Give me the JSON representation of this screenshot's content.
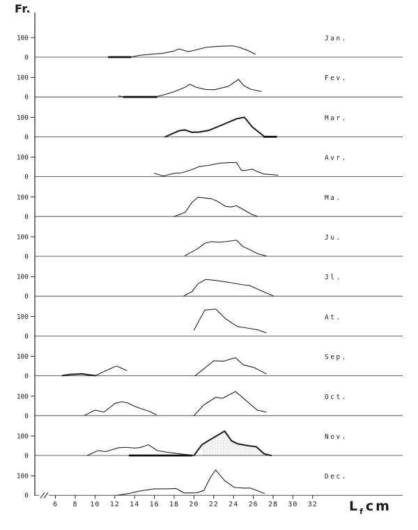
{
  "figure": {
    "y_axis_title": "Fr.",
    "x_axis_title": {
      "main": "L",
      "sub": "f",
      "unit": "cm"
    },
    "y_tick_labels": {
      "hundred": "100",
      "zero": "0"
    }
  },
  "chart_data": {
    "type": "line",
    "title": "",
    "xlabel": "Lf cm",
    "ylabel": "Fr.",
    "x_range": [
      5,
      33.5
    ],
    "x_axis_ticks": [
      6,
      8,
      10,
      12,
      14,
      16,
      18,
      20,
      22,
      24,
      26,
      28,
      30,
      32
    ],
    "panel_y_ticks": [
      0,
      100
    ],
    "legend": "none",
    "grid": false,
    "panels": [
      {
        "label": "Jan.",
        "zero_bold_segments": [
          [
            11.4,
            13.6
          ]
        ],
        "curves": [
          {
            "bold": false,
            "points": [
              [
                11.4,
                0
              ],
              [
                13.6,
                0
              ],
              [
                14.6,
                10
              ],
              [
                15.8,
                15
              ],
              [
                16.9,
                20
              ],
              [
                17.9,
                30
              ],
              [
                18.5,
                42
              ],
              [
                19.4,
                28
              ],
              [
                20.3,
                38
              ],
              [
                21.2,
                50
              ],
              [
                22.4,
                55
              ],
              [
                23.3,
                57
              ],
              [
                23.9,
                58
              ],
              [
                24.6,
                50
              ],
              [
                25.4,
                35
              ],
              [
                26.2,
                15
              ]
            ]
          }
        ]
      },
      {
        "label": "Fev.",
        "zero_bold_segments": [
          [
            12.9,
            16.2
          ]
        ],
        "curves": [
          {
            "bold": false,
            "points": [
              [
                12.4,
                5
              ],
              [
                12.9,
                0
              ],
              [
                16.2,
                2
              ],
              [
                16.9,
                10
              ],
              [
                17.9,
                25
              ],
              [
                19.1,
                50
              ],
              [
                19.6,
                65
              ],
              [
                20.2,
                50
              ],
              [
                21.2,
                38
              ],
              [
                22.1,
                37
              ],
              [
                23.5,
                55
              ],
              [
                24.5,
                90
              ],
              [
                25.0,
                60
              ],
              [
                25.7,
                40
              ],
              [
                26.8,
                28
              ]
            ]
          }
        ]
      },
      {
        "label": "Mar.",
        "zero_bold_segments": [
          [
            27.1,
            28.3
          ]
        ],
        "curves": [
          {
            "bold": true,
            "points": [
              [
                17.1,
                0
              ],
              [
                18.5,
                31
              ],
              [
                19.1,
                35
              ],
              [
                19.8,
                23
              ],
              [
                20.5,
                24
              ],
              [
                21.5,
                33
              ],
              [
                22.9,
                62
              ],
              [
                24.3,
                92
              ],
              [
                25.1,
                100
              ],
              [
                25.9,
                50
              ],
              [
                27.1,
                2
              ]
            ]
          }
        ]
      },
      {
        "label": "Avr.",
        "zero_bold_segments": [],
        "curves": [
          {
            "bold": false,
            "points": [
              [
                16.0,
                17
              ],
              [
                16.9,
                3
              ],
              [
                18.0,
                17
              ],
              [
                18.8,
                20
              ],
              [
                19.8,
                36
              ],
              [
                20.5,
                51
              ],
              [
                21.5,
                58
              ],
              [
                22.6,
                69
              ],
              [
                23.6,
                72
              ],
              [
                24.3,
                72
              ],
              [
                24.8,
                32
              ],
              [
                25.2,
                32
              ],
              [
                25.9,
                38
              ],
              [
                26.4,
                26
              ],
              [
                27.1,
                13
              ],
              [
                28.0,
                10
              ],
              [
                28.5,
                7
              ]
            ]
          }
        ]
      },
      {
        "label": "Ma.",
        "zero_bold_segments": [],
        "curves": [
          {
            "bold": false,
            "points": [
              [
                18.0,
                0
              ],
              [
                18.8,
                15
              ],
              [
                19.1,
                21
              ],
              [
                19.8,
                72
              ],
              [
                20.4,
                98
              ],
              [
                21.1,
                95
              ],
              [
                21.8,
                90
              ],
              [
                22.3,
                80
              ],
              [
                23.2,
                51
              ],
              [
                23.8,
                49
              ],
              [
                24.3,
                55
              ],
              [
                25.1,
                32
              ],
              [
                25.9,
                9
              ],
              [
                26.4,
                1
              ]
            ]
          }
        ]
      },
      {
        "label": "Ju.",
        "zero_bold_segments": [],
        "curves": [
          {
            "bold": false,
            "points": [
              [
                19.1,
                3
              ],
              [
                19.8,
                23
              ],
              [
                20.4,
                40
              ],
              [
                21.1,
                67
              ],
              [
                21.8,
                75
              ],
              [
                22.5,
                72
              ],
              [
                23.2,
                75
              ],
              [
                24.3,
                83
              ],
              [
                24.9,
                52
              ],
              [
                25.6,
                35
              ],
              [
                26.5,
                12
              ],
              [
                27.3,
                2
              ]
            ]
          }
        ]
      },
      {
        "label": "Jl.",
        "zero_bold_segments": [],
        "curves": [
          {
            "bold": false,
            "points": [
              [
                19.0,
                2
              ],
              [
                19.8,
                23
              ],
              [
                20.4,
                63
              ],
              [
                21.2,
                86
              ],
              [
                22.3,
                80
              ],
              [
                23.7,
                69
              ],
              [
                25.1,
                57
              ],
              [
                25.6,
                55
              ],
              [
                27.0,
                23
              ],
              [
                28.0,
                2
              ]
            ]
          }
        ]
      },
      {
        "label": "At.",
        "zero_bold_segments": [],
        "curves": [
          {
            "bold": false,
            "points": [
              [
                20.0,
                30
              ],
              [
                21.1,
                133
              ],
              [
                22.2,
                138
              ],
              [
                23.2,
                88
              ],
              [
                24.4,
                48
              ],
              [
                25.1,
                43
              ],
              [
                26.5,
                31
              ],
              [
                27.3,
                16
              ]
            ]
          }
        ]
      },
      {
        "label": "Sep.",
        "zero_bold_segments": [],
        "curves": [
          {
            "bold": true,
            "points": [
              [
                6.7,
                1
              ],
              [
                7.5,
                7
              ],
              [
                8.7,
                10
              ],
              [
                9.5,
                4
              ],
              [
                10.0,
                1
              ]
            ]
          },
          {
            "bold": false,
            "points": [
              [
                10.0,
                0
              ],
              [
                11.0,
                24
              ],
              [
                11.9,
                45
              ],
              [
                12.2,
                50
              ],
              [
                13.2,
                27
              ]
            ]
          },
          {
            "bold": false,
            "points": [
              [
                20.1,
                0
              ],
              [
                21.0,
                36
              ],
              [
                22.0,
                77
              ],
              [
                23.0,
                75
              ],
              [
                24.2,
                93
              ],
              [
                25.0,
                56
              ],
              [
                26.1,
                42
              ],
              [
                27.3,
                10
              ]
            ]
          }
        ]
      },
      {
        "label": "Oct.",
        "zero_bold_segments": [],
        "curves": [
          {
            "bold": false,
            "points": [
              [
                9.0,
                3
              ],
              [
                10.0,
                28
              ],
              [
                10.9,
                18
              ],
              [
                12.0,
                62
              ],
              [
                12.7,
                72
              ],
              [
                13.3,
                65
              ],
              [
                14.0,
                48
              ],
              [
                14.7,
                35
              ],
              [
                15.5,
                22
              ],
              [
                16.2,
                5
              ]
            ]
          },
          {
            "bold": false,
            "points": [
              [
                20.0,
                0
              ],
              [
                21.0,
                55
              ],
              [
                22.2,
                94
              ],
              [
                22.9,
                89
              ],
              [
                24.2,
                124
              ],
              [
                25.5,
                67
              ],
              [
                26.4,
                28
              ],
              [
                27.3,
                18
              ]
            ]
          }
        ]
      },
      {
        "label": "Nov.",
        "zero_bold_segments": [
          [
            13.5,
            19.8
          ]
        ],
        "curves": [
          {
            "bold": false,
            "points": [
              [
                9.2,
                0
              ],
              [
                10.3,
                25
              ],
              [
                11.1,
                20
              ],
              [
                12.4,
                40
              ],
              [
                13.1,
                42
              ],
              [
                14.0,
                38
              ],
              [
                14.5,
                40
              ],
              [
                15.4,
                55
              ],
              [
                16.3,
                25
              ],
              [
                17.1,
                18
              ],
              [
                18.3,
                10
              ],
              [
                19.6,
                3
              ],
              [
                20.0,
                0
              ]
            ]
          },
          {
            "bold": true,
            "stipple": true,
            "stipple_range": [
              20.8,
              27.1
            ],
            "points": [
              [
                20.0,
                0
              ],
              [
                20.8,
                55
              ],
              [
                21.6,
                80
              ],
              [
                23.1,
                125
              ],
              [
                23.8,
                75
              ],
              [
                24.4,
                60
              ],
              [
                25.5,
                50
              ],
              [
                26.3,
                45
              ],
              [
                27.1,
                8
              ],
              [
                27.8,
                0
              ]
            ]
          }
        ]
      },
      {
        "label": "Dec.",
        "zero_bold_segments": [],
        "curves": [
          {
            "bold": false,
            "points": [
              [
                12.2,
                0
              ],
              [
                13.5,
                10
              ],
              [
                14.5,
                22
              ],
              [
                16.0,
                33
              ],
              [
                17.3,
                33
              ],
              [
                18.2,
                35
              ],
              [
                19.0,
                12
              ],
              [
                20.3,
                13
              ],
              [
                21.0,
                25
              ],
              [
                21.7,
                95
              ],
              [
                22.2,
                130
              ],
              [
                23.1,
                75
              ],
              [
                24.1,
                40
              ],
              [
                25.0,
                37
              ],
              [
                25.7,
                37
              ],
              [
                26.5,
                22
              ],
              [
                27.1,
                10
              ]
            ]
          }
        ]
      }
    ]
  }
}
